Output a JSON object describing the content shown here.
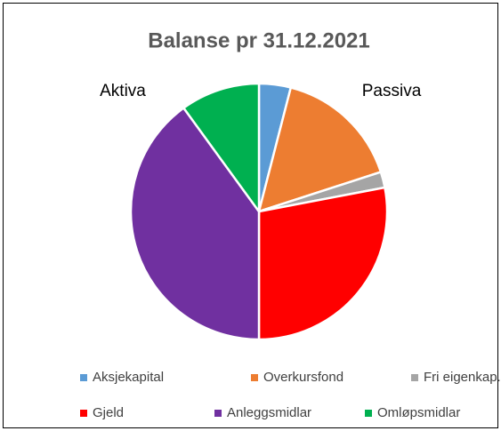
{
  "chart_data": {
    "type": "pie",
    "title": "Balanse pr 31.12.2021",
    "annotations": [
      "Aktiva",
      "Passiva"
    ],
    "categories": [
      "Aksjekapital",
      "Overkursfond",
      "Fri eigenkap.",
      "Gjeld",
      "Anleggsmidlar",
      "Omløpsmidlar"
    ],
    "values": [
      4,
      16,
      2,
      28,
      40,
      10
    ],
    "colors": [
      "#5b9bd5",
      "#ed7d31",
      "#a5a5a5",
      "#ff0000",
      "#7030a0",
      "#00b050"
    ],
    "legend": "bottom"
  }
}
